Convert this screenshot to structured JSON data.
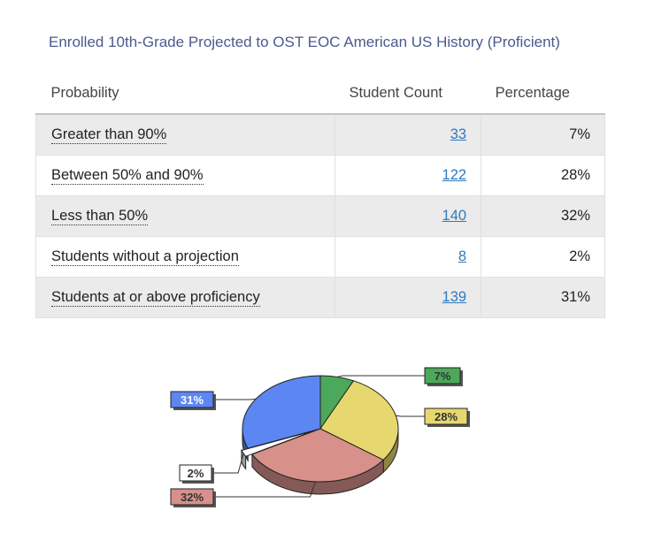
{
  "title": "Enrolled 10th-Grade Projected to OST EOC American US History (Proficient)",
  "table": {
    "headers": {
      "probability": "Probability",
      "count": "Student Count",
      "percentage": "Percentage"
    },
    "rows": [
      {
        "label": "Greater than 90%",
        "count": "33",
        "percentage": "7%"
      },
      {
        "label": "Between 50% and 90%",
        "count": "122",
        "percentage": "28%"
      },
      {
        "label": "Less than 50%",
        "count": "140",
        "percentage": "32%"
      },
      {
        "label": "Students without a projection",
        "count": "8",
        "percentage": "2%"
      },
      {
        "label": "Students at or above proficiency",
        "count": "139",
        "percentage": "31%"
      }
    ]
  },
  "chart_data": {
    "type": "pie",
    "slices": [
      {
        "label": "7%",
        "value": 7,
        "color": "#4ca85a"
      },
      {
        "label": "28%",
        "value": 28,
        "color": "#e6d86e"
      },
      {
        "label": "32%",
        "value": 32,
        "color": "#d7908a"
      },
      {
        "label": "2%",
        "value": 2,
        "color": "#ffffff"
      },
      {
        "label": "31%",
        "value": 31,
        "color": "#5c86f2"
      }
    ]
  }
}
